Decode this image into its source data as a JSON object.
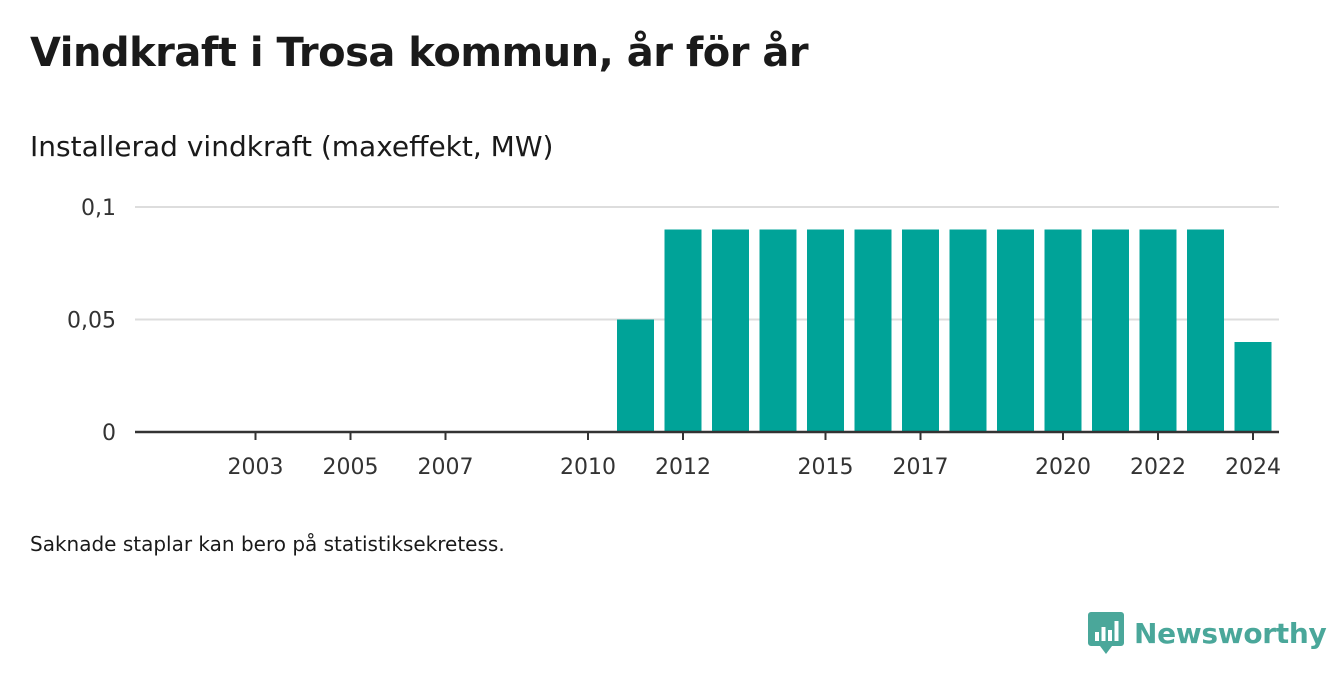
{
  "header": {
    "title": "Vindkraft i Trosa kommun, år för år",
    "subtitle": "Installerad vindkraft (maxeffekt, MW)"
  },
  "footer": {
    "note": "Saknade staplar kan bero på statistiksekretess.",
    "brand": "Newsworthy"
  },
  "colors": {
    "bar": "#00a398",
    "grid": "#dddddd",
    "axis": "#333333",
    "brand": "#4aa79a"
  },
  "chart_data": {
    "type": "bar",
    "title": "Installerad vindkraft (maxeffekt, MW)",
    "xlabel": "",
    "ylabel": "",
    "ylim": [
      0,
      0.1
    ],
    "grid": true,
    "y_ticks": [
      {
        "value": 0,
        "label": "0"
      },
      {
        "value": 0.05,
        "label": "0,05"
      },
      {
        "value": 0.1,
        "label": "0,1"
      }
    ],
    "x_tick_labels": [
      "2003",
      "2005",
      "2007",
      "2010",
      "2012",
      "2015",
      "2017",
      "2020",
      "2022",
      "2024"
    ],
    "categories": [
      "2002",
      "2003",
      "2004",
      "2005",
      "2006",
      "2007",
      "2008",
      "2009",
      "2010",
      "2011",
      "2012",
      "2013",
      "2014",
      "2015",
      "2016",
      "2017",
      "2018",
      "2019",
      "2020",
      "2021",
      "2022",
      "2023",
      "2024"
    ],
    "values": [
      null,
      null,
      null,
      null,
      null,
      null,
      null,
      null,
      null,
      0.05,
      0.09,
      0.09,
      0.09,
      0.09,
      0.09,
      0.09,
      0.09,
      0.09,
      0.09,
      0.09,
      0.09,
      0.09,
      0.04
    ]
  }
}
